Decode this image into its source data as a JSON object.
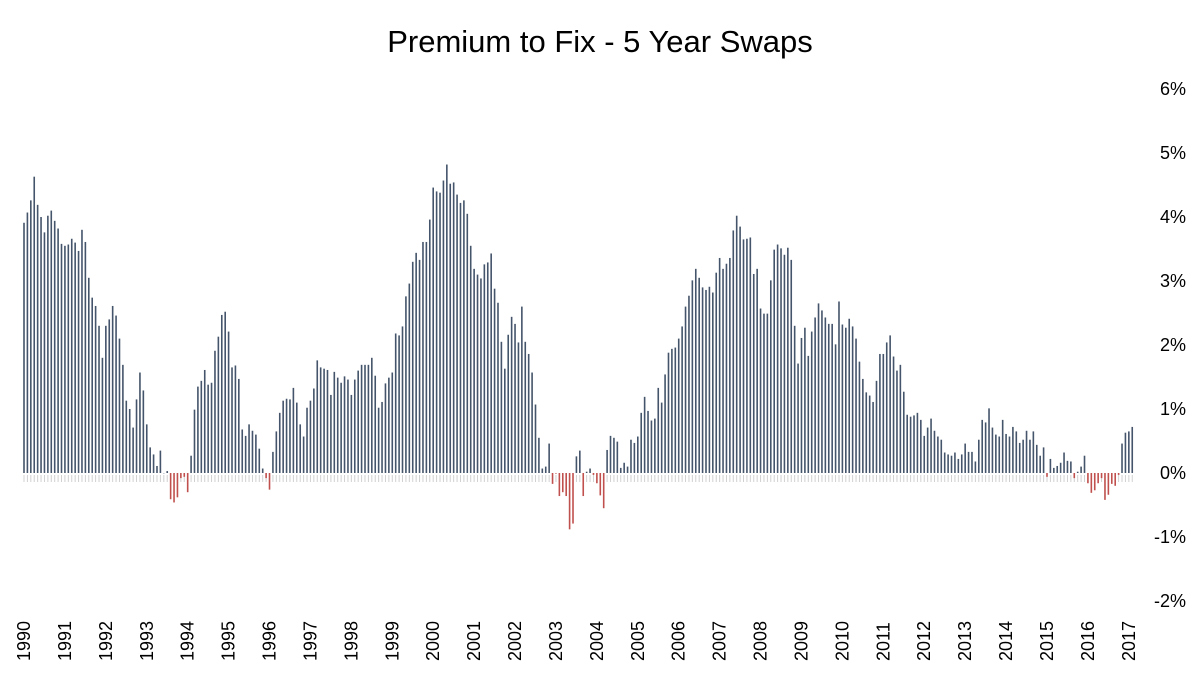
{
  "chart_data": {
    "type": "bar",
    "title": "Premium to Fix - 5 Year Swaps",
    "xlabel": "",
    "ylabel": "",
    "x_start": "1990-01",
    "frequency": "monthly",
    "x_tick_labels": [
      "1990",
      "1991",
      "1992",
      "1993",
      "1994",
      "1995",
      "1996",
      "1997",
      "1998",
      "1999",
      "2000",
      "2001",
      "2002",
      "2003",
      "2004",
      "2005",
      "2006",
      "2007",
      "2008",
      "2009",
      "2010",
      "2011",
      "2012",
      "2013",
      "2014",
      "2015",
      "2016",
      "2017"
    ],
    "y_tick_labels": [
      "6%",
      "5%",
      "4%",
      "3%",
      "2%",
      "1%",
      "0%",
      "-1%",
      "-2%"
    ],
    "ylim": [
      -2,
      6
    ],
    "y_unit": "%",
    "y_axis_position": "right",
    "grid": false,
    "legend": "none",
    "colors": {
      "positive": "#44546a",
      "negative": "#c0504d",
      "ticks": "#d0d0d0"
    },
    "values": [
      3.91,
      4.07,
      4.26,
      4.63,
      4.19,
      4.0,
      3.76,
      4.02,
      4.1,
      3.94,
      3.82,
      3.58,
      3.55,
      3.57,
      3.66,
      3.6,
      3.47,
      3.8,
      3.61,
      3.05,
      2.74,
      2.61,
      2.3,
      1.8,
      2.3,
      2.4,
      2.61,
      2.46,
      2.1,
      1.69,
      1.13,
      1.0,
      0.71,
      1.15,
      1.57,
      1.29,
      0.76,
      0.4,
      0.29,
      0.11,
      0.35,
      0,
      0.03,
      -0.41,
      -0.46,
      -0.38,
      -0.08,
      -0.06,
      -0.3,
      0.27,
      0.99,
      1.35,
      1.44,
      1.61,
      1.38,
      1.41,
      1.91,
      2.13,
      2.47,
      2.52,
      2.21,
      1.65,
      1.68,
      1.47,
      0.68,
      0.58,
      0.76,
      0.66,
      0.6,
      0.38,
      0.07,
      -0.08,
      -0.26,
      0.33,
      0.65,
      0.94,
      1.13,
      1.16,
      1.15,
      1.33,
      1.1,
      0.76,
      0.57,
      1.02,
      1.13,
      1.32,
      1.76,
      1.65,
      1.63,
      1.61,
      1.22,
      1.58,
      1.49,
      1.41,
      1.51,
      1.46,
      1.22,
      1.46,
      1.6,
      1.69,
      1.69,
      1.69,
      1.8,
      1.52,
      1.02,
      1.11,
      1.4,
      1.49,
      1.57,
      2.18,
      2.15,
      2.29,
      2.76,
      2.96,
      3.3,
      3.44,
      3.33,
      3.61,
      3.61,
      3.96,
      4.46,
      4.4,
      4.38,
      4.57,
      4.82,
      4.52,
      4.54,
      4.35,
      4.22,
      4.26,
      4.05,
      3.55,
      3.19,
      3.1,
      3.04,
      3.26,
      3.29,
      3.43,
      2.88,
      2.66,
      2.05,
      1.63,
      2.16,
      2.44,
      2.33,
      2.04,
      2.6,
      2.05,
      1.86,
      1.57,
      1.07,
      0.55,
      0.07,
      0.1,
      0.46,
      -0.17,
      -0.01,
      -0.36,
      -0.3,
      -0.36,
      -0.88,
      -0.79,
      0.26,
      0.35,
      -0.36,
      0.02,
      0.07,
      -0.03,
      -0.16,
      -0.35,
      -0.55,
      0.36,
      0.58,
      0.55,
      0.49,
      0.08,
      0.16,
      0.1,
      0.52,
      0.47,
      0.57,
      0.94,
      1.19,
      0.97,
      0.82,
      0.85,
      1.33,
      1.1,
      1.54,
      1.88,
      1.94,
      1.96,
      2.1,
      2.29,
      2.6,
      2.77,
      3.01,
      3.19,
      3.05,
      2.9,
      2.86,
      2.91,
      2.82,
      3.13,
      3.36,
      3.19,
      3.27,
      3.36,
      3.79,
      4.02,
      3.85,
      3.65,
      3.66,
      3.68,
      3.11,
      3.19,
      2.57,
      2.49,
      2.49,
      3.01,
      3.49,
      3.57,
      3.51,
      3.41,
      3.52,
      3.33,
      2.3,
      1.71,
      2.11,
      2.27,
      1.83,
      2.21,
      2.43,
      2.65,
      2.54,
      2.43,
      2.33,
      2.33,
      2.01,
      2.68,
      2.32,
      2.27,
      2.41,
      2.29,
      2.1,
      1.74,
      1.47,
      1.26,
      1.21,
      1.11,
      1.44,
      1.86,
      1.86,
      2.04,
      2.15,
      1.82,
      1.6,
      1.69,
      1.27,
      0.91,
      0.88,
      0.9,
      0.94,
      0.83,
      0.58,
      0.71,
      0.85,
      0.66,
      0.57,
      0.52,
      0.32,
      0.29,
      0.27,
      0.32,
      0.22,
      0.29,
      0.46,
      0.33,
      0.33,
      0.18,
      0.52,
      0.83,
      0.79,
      1.01,
      0.71,
      0.6,
      0.57,
      0.83,
      0.61,
      0.57,
      0.72,
      0.65,
      0.47,
      0.52,
      0.66,
      0.52,
      0.65,
      0.44,
      0.27,
      0.4,
      -0.06,
      0.22,
      0.08,
      0.11,
      0.16,
      0.32,
      0.19,
      0.18,
      -0.08,
      0.02,
      0.1,
      0.27,
      -0.16,
      -0.31,
      -0.27,
      -0.16,
      -0.08,
      -0.42,
      -0.34,
      -0.17,
      -0.2,
      -0.03,
      0.46,
      0.63,
      0.65,
      0.72
    ]
  }
}
